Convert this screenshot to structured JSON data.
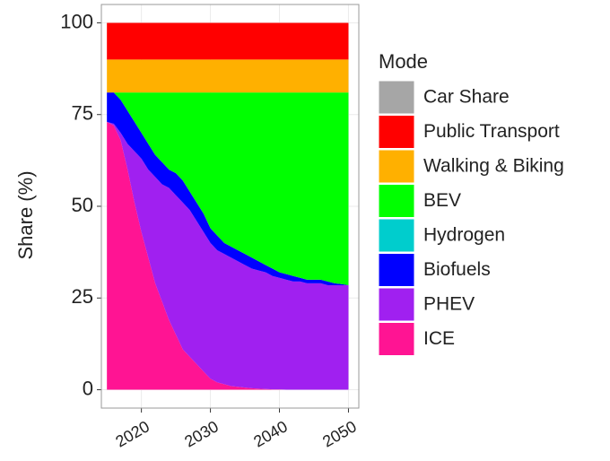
{
  "chart_data": {
    "type": "stacked-area",
    "y_label": "Share (%)",
    "legend_title": "Mode",
    "legend": "right",
    "grid": true,
    "x": [
      2015,
      2016,
      2017,
      2018,
      2019,
      2020,
      2021,
      2022,
      2023,
      2024,
      2025,
      2026,
      2027,
      2028,
      2029,
      2030,
      2031,
      2032,
      2033,
      2034,
      2035,
      2036,
      2037,
      2038,
      2039,
      2040,
      2041,
      2042,
      2043,
      2044,
      2045,
      2046,
      2047,
      2048,
      2049,
      2050
    ],
    "xlim": [
      2014.2,
      2051.5
    ],
    "xticks": [
      2020,
      2030,
      2040,
      2050
    ],
    "ylim": [
      -5,
      105
    ],
    "yticks": [
      0,
      25,
      50,
      75,
      100
    ],
    "series": [
      {
        "name": "ICE",
        "color": "#ff1493",
        "values": [
          73,
          72,
          68,
          60,
          51,
          43,
          36,
          29,
          24,
          19,
          15,
          11,
          9,
          7,
          5,
          3,
          2,
          1.5,
          1,
          0.8,
          0.6,
          0.4,
          0.3,
          0.2,
          0.1,
          0.1,
          0,
          0,
          0,
          0,
          0,
          0,
          0,
          0,
          0,
          0
        ]
      },
      {
        "name": "PHEV",
        "color": "#a020f0",
        "values": [
          0,
          0.5,
          2,
          7,
          14,
          20,
          24,
          29,
          32,
          36,
          38,
          40,
          40,
          39,
          38,
          37,
          36,
          35.5,
          35,
          34.2,
          33.4,
          32.6,
          32.2,
          31.8,
          30.9,
          30.4,
          30,
          29.5,
          29.5,
          29,
          29,
          29,
          28.5,
          28.5,
          28.5,
          28.5
        ]
      },
      {
        "name": "Biofuels",
        "color": "#0000ff",
        "values": [
          8,
          8.5,
          9,
          9,
          8,
          7,
          7,
          6,
          6,
          5,
          6,
          6,
          5,
          5,
          5,
          4,
          4,
          3,
          3,
          3,
          3,
          3,
          2.5,
          2,
          2,
          1.5,
          1.5,
          1.5,
          1,
          1,
          1,
          1,
          1,
          0.5,
          0.3,
          0
        ]
      },
      {
        "name": "Hydrogen",
        "color": "#00cdcd",
        "values": [
          0,
          0,
          0,
          0,
          0,
          0,
          0,
          0,
          0,
          0,
          0,
          0,
          0,
          0,
          0,
          0,
          0,
          0,
          0,
          0,
          0,
          0,
          0,
          0,
          0,
          0,
          0,
          0,
          0,
          0,
          0,
          0,
          0,
          0,
          0,
          0
        ]
      },
      {
        "name": "BEV",
        "color": "#00ff00",
        "values": [
          0,
          0,
          2,
          5,
          8,
          11,
          14,
          17,
          19,
          21,
          22,
          24,
          27,
          30,
          33,
          37,
          39,
          41,
          42,
          43,
          44,
          45,
          46,
          47,
          48,
          49,
          49.5,
          50,
          50.5,
          51,
          51,
          51,
          51.5,
          52,
          52.2,
          52.5
        ]
      },
      {
        "name": "Walking & Biking",
        "color": "#ffb000",
        "values": [
          9,
          9,
          9,
          9,
          9,
          9,
          9,
          9,
          9,
          9,
          9,
          9,
          9,
          9,
          9,
          9,
          9,
          9,
          9,
          9,
          9,
          9,
          9,
          9,
          9,
          9,
          9,
          9,
          9,
          9,
          9,
          9,
          9,
          9,
          9,
          9
        ]
      },
      {
        "name": "Public Transport",
        "color": "#ff0000",
        "values": [
          10,
          10,
          10,
          10,
          10,
          10,
          10,
          10,
          10,
          10,
          10,
          10,
          10,
          10,
          10,
          10,
          10,
          10,
          10,
          10,
          10,
          10,
          10,
          10,
          10,
          10,
          10,
          10,
          10,
          10,
          10,
          10,
          10,
          10,
          10,
          10
        ]
      },
      {
        "name": "Car Share",
        "color": "#a6a6a6",
        "values": [
          0,
          0,
          0,
          0,
          0,
          0,
          0,
          0,
          0,
          0,
          0,
          0,
          0,
          0,
          0,
          0,
          0,
          0,
          0,
          0,
          0,
          0,
          0,
          0,
          0,
          0,
          0,
          0,
          0,
          0,
          0,
          0,
          0,
          0,
          0,
          0
        ]
      }
    ]
  }
}
